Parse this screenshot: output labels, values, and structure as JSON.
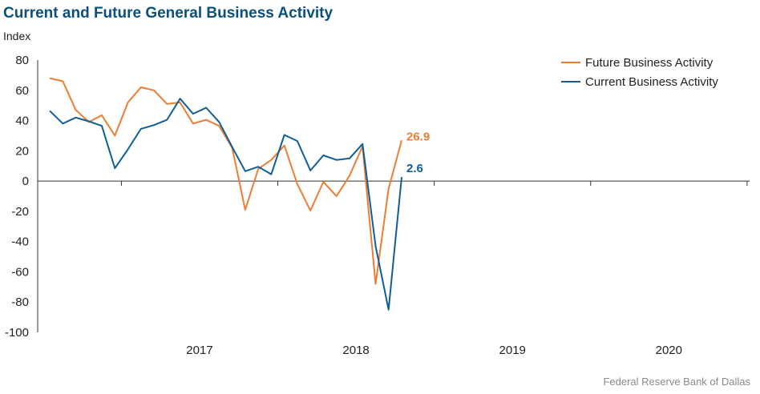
{
  "title": "Current and Future General Business Activity",
  "source": "Federal Reserve Bank of Dallas",
  "chart_data": {
    "type": "line",
    "ylabel": "Index",
    "ylim": [
      -100,
      80
    ],
    "yticks": [
      -100,
      -80,
      -60,
      -40,
      -20,
      0,
      20,
      40,
      60,
      80
    ],
    "x_start": "2016-07",
    "x_end": "2020-12",
    "year_labels": [
      "2017",
      "2018",
      "2019",
      "2020"
    ],
    "legend_position": "top-right",
    "series": [
      {
        "name": "Future Business Activity",
        "color": "#ed7d31",
        "end_label": "26.9",
        "points": [
          [
            "2016-07",
            68
          ],
          [
            "2016-08",
            66
          ],
          [
            "2016-09",
            47
          ],
          [
            "2016-10",
            39
          ],
          [
            "2016-11",
            43.5
          ],
          [
            "2016-12",
            30
          ],
          [
            "2017-01",
            52
          ],
          [
            "2017-02",
            62
          ],
          [
            "2017-03",
            60
          ],
          [
            "2017-04",
            51
          ],
          [
            "2017-05",
            52
          ],
          [
            "2017-06",
            38
          ],
          [
            "2017-07",
            40.5
          ],
          [
            "2017-08",
            36.5
          ],
          [
            "2017-09",
            22
          ],
          [
            "2017-10",
            -19
          ],
          [
            "2017-11",
            8
          ],
          [
            "2017-12",
            14
          ],
          [
            "2018-01",
            23.5
          ],
          [
            "2018-02",
            -2
          ],
          [
            "2018-03",
            -19.5
          ],
          [
            "2018-04",
            -0.5
          ],
          [
            "2018-05",
            -10
          ],
          [
            "2018-06",
            3.5
          ],
          [
            "2018-07",
            23
          ],
          [
            "2018-08",
            -68
          ],
          [
            "2018-09",
            -5
          ],
          [
            "2018-10",
            26.9
          ]
        ]
      },
      {
        "name": "Current Business Activity",
        "color": "#0f5e96",
        "end_label": "2.6",
        "points": [
          [
            "2016-07",
            46.5
          ],
          [
            "2016-08",
            38
          ],
          [
            "2016-09",
            42
          ],
          [
            "2016-10",
            39.5
          ],
          [
            "2016-11",
            36.5
          ],
          [
            "2016-12",
            8.5
          ],
          [
            "2017-01",
            21
          ],
          [
            "2017-02",
            34.5
          ],
          [
            "2017-03",
            37
          ],
          [
            "2017-04",
            40.5
          ],
          [
            "2017-05",
            54.5
          ],
          [
            "2017-06",
            44.5
          ],
          [
            "2017-07",
            48.5
          ],
          [
            "2017-08",
            39
          ],
          [
            "2017-09",
            22.5
          ],
          [
            "2017-10",
            6.5
          ],
          [
            "2017-11",
            9.5
          ],
          [
            "2017-12",
            4.5
          ],
          [
            "2018-01",
            30.5
          ],
          [
            "2018-02",
            26.5
          ],
          [
            "2018-03",
            7
          ],
          [
            "2018-04",
            17
          ],
          [
            "2018-05",
            14
          ],
          [
            "2018-06",
            15
          ],
          [
            "2018-07",
            24.5
          ],
          [
            "2018-08",
            -43
          ],
          [
            "2018-09",
            -85
          ],
          [
            "2018-10",
            2.6
          ]
        ]
      }
    ]
  }
}
